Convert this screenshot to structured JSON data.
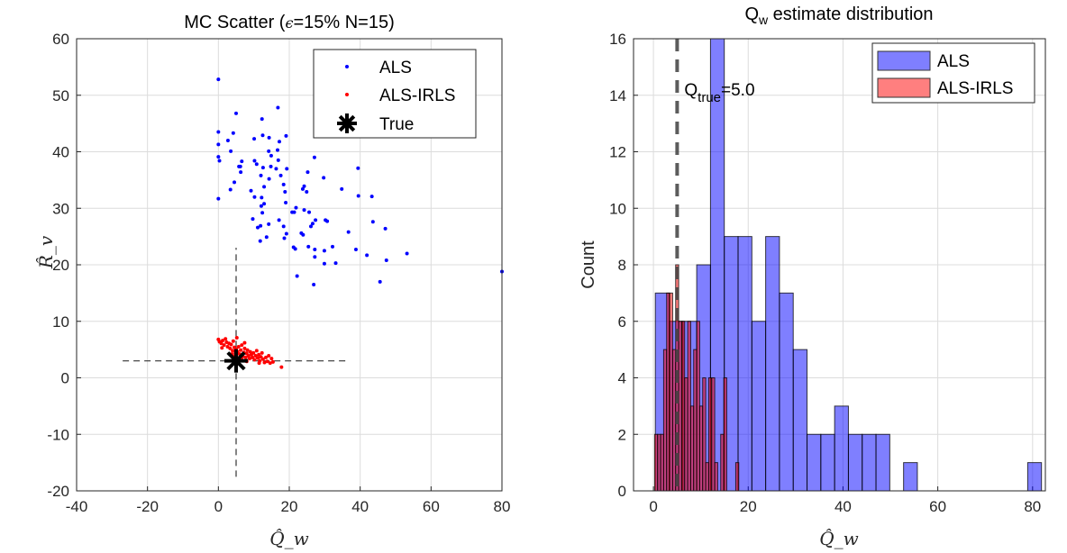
{
  "chart_data": [
    {
      "type": "scatter",
      "title": "MC Scatter  (ϵ=15%  N=15)",
      "xlabel": "Q̂_w",
      "ylabel": "R̂_v",
      "xlim": [
        -40,
        80
      ],
      "ylim": [
        -20,
        60
      ],
      "xticks": [
        -40,
        -20,
        0,
        20,
        40,
        60,
        80
      ],
      "yticks": [
        -20,
        -10,
        0,
        10,
        20,
        30,
        40,
        50,
        60
      ],
      "grid": true,
      "legend_position": "top-right",
      "series": [
        {
          "name": "ALS",
          "color": "#0000ff",
          "marker": "dot",
          "points": [
            [
              0,
              52.8
            ],
            [
              5,
              46.8
            ],
            [
              16.8,
              47.8
            ],
            [
              12.3,
              45.8
            ],
            [
              0,
              43.5
            ],
            [
              4.2,
              43.3
            ],
            [
              2.7,
              42
            ],
            [
              0,
              41.3
            ],
            [
              3.5,
              40.1
            ],
            [
              10.1,
              42.3
            ],
            [
              12.5,
              42.9
            ],
            [
              14.3,
              42.5
            ],
            [
              17.2,
              41.8
            ],
            [
              19.1,
              42.8
            ],
            [
              14.2,
              40.1
            ],
            [
              16.7,
              40.3
            ],
            [
              14.9,
              39.3
            ],
            [
              0,
              39.1
            ],
            [
              0.3,
              38.4
            ],
            [
              6.6,
              38.3
            ],
            [
              10.2,
              38.4
            ],
            [
              10.8,
              37.8
            ],
            [
              5.8,
              37.4
            ],
            [
              6.2,
              37.4
            ],
            [
              6.3,
              36.4
            ],
            [
              12.6,
              37.2
            ],
            [
              14.8,
              37.4
            ],
            [
              16.3,
              37
            ],
            [
              16.9,
              38.5
            ],
            [
              19.3,
              37
            ],
            [
              27.1,
              39
            ],
            [
              12,
              35.8
            ],
            [
              14.3,
              35.2
            ],
            [
              17.6,
              35.8
            ],
            [
              25.2,
              36.4
            ],
            [
              29.7,
              35.4
            ],
            [
              39.4,
              37.1
            ],
            [
              4.5,
              34.6
            ],
            [
              12.9,
              33.8
            ],
            [
              18.4,
              34.2
            ],
            [
              24.2,
              33.9
            ],
            [
              23.8,
              33.4
            ],
            [
              24.9,
              32.9
            ],
            [
              34.8,
              33.4
            ],
            [
              3.4,
              33.3
            ],
            [
              9.2,
              33.1
            ],
            [
              18.8,
              32.9
            ],
            [
              0,
              31.7
            ],
            [
              10.2,
              32
            ],
            [
              12.2,
              31.9
            ],
            [
              12.9,
              30.8
            ],
            [
              12.1,
              30.4
            ],
            [
              19,
              31
            ],
            [
              39.5,
              32.2
            ],
            [
              43.3,
              32.1
            ],
            [
              21.9,
              30.1
            ],
            [
              20.8,
              29.3
            ],
            [
              21.4,
              29.3
            ],
            [
              24.2,
              29.7
            ],
            [
              25.6,
              29.3
            ],
            [
              12.4,
              29.2
            ],
            [
              9.7,
              28.1
            ],
            [
              17.1,
              27.9
            ],
            [
              27.4,
              27.9
            ],
            [
              30.2,
              27.9
            ],
            [
              30.7,
              27.7
            ],
            [
              26.6,
              27.3
            ],
            [
              26.1,
              26.8
            ],
            [
              43.6,
              27.6
            ],
            [
              14.2,
              27.2
            ],
            [
              11.9,
              26.9
            ],
            [
              11.1,
              26.6
            ],
            [
              18.4,
              26.8
            ],
            [
              47.1,
              26.4
            ],
            [
              36.7,
              25.8
            ],
            [
              23.4,
              25.6
            ],
            [
              23.9,
              25.3
            ],
            [
              19.2,
              25.5
            ],
            [
              13.6,
              24.9
            ],
            [
              18.6,
              24.7
            ],
            [
              11.8,
              24.2
            ],
            [
              21.2,
              23.1
            ],
            [
              21.7,
              22.8
            ],
            [
              25.4,
              23.2
            ],
            [
              27.2,
              22.7
            ],
            [
              29.9,
              22.5
            ],
            [
              32.2,
              23.2
            ],
            [
              38.8,
              22.7
            ],
            [
              53.2,
              22
            ],
            [
              27.2,
              21.4
            ],
            [
              41.9,
              21.7
            ],
            [
              29.9,
              20.2
            ],
            [
              33.1,
              20.3
            ],
            [
              47.4,
              20.8
            ],
            [
              22.2,
              18
            ],
            [
              26.9,
              16.5
            ],
            [
              45.6,
              17
            ],
            [
              80,
              18.8
            ]
          ]
        },
        {
          "name": "ALS-IRLS",
          "color": "#ff0000",
          "marker": "dot",
          "points": [
            [
              0,
              6.8
            ],
            [
              0.3,
              6.4
            ],
            [
              0.8,
              6.1
            ],
            [
              1.2,
              6.6
            ],
            [
              1.6,
              5.8
            ],
            [
              2,
              6.9
            ],
            [
              2.3,
              6.3
            ],
            [
              2.6,
              5.5
            ],
            [
              3,
              6.1
            ],
            [
              3.3,
              5.2
            ],
            [
              3.6,
              5.9
            ],
            [
              4,
              4.8
            ],
            [
              4.2,
              6.5
            ],
            [
              4.5,
              5.4
            ],
            [
              4.8,
              4.4
            ],
            [
              5,
              5.1
            ],
            [
              5.2,
              7.1
            ],
            [
              5.4,
              4.6
            ],
            [
              5.7,
              5.5
            ],
            [
              6,
              4.2
            ],
            [
              6.3,
              4.9
            ],
            [
              6.6,
              5.8
            ],
            [
              6.9,
              3.8
            ],
            [
              7.2,
              4.5
            ],
            [
              7.4,
              5.2
            ],
            [
              7.7,
              3.6
            ],
            [
              8,
              4.3
            ],
            [
              8.2,
              4.9
            ],
            [
              8.5,
              3.9
            ],
            [
              8.8,
              3.4
            ],
            [
              9,
              4.6
            ],
            [
              9.3,
              4.1
            ],
            [
              9.6,
              3.6
            ],
            [
              9.9,
              4.4
            ],
            [
              10.2,
              3.2
            ],
            [
              10.5,
              3.9
            ],
            [
              10.8,
              4.8
            ],
            [
              11.1,
              3.5
            ],
            [
              11.4,
              4.1
            ],
            [
              11.7,
              3
            ],
            [
              12,
              3.7
            ],
            [
              12.3,
              4.4
            ],
            [
              12.6,
              3.3
            ],
            [
              13,
              2.7
            ],
            [
              13.4,
              3.6
            ],
            [
              13.8,
              2.9
            ],
            [
              14.2,
              3.9
            ],
            [
              14.6,
              2.6
            ],
            [
              15,
              3.4
            ],
            [
              15.4,
              2.8
            ],
            [
              8,
              2.9
            ],
            [
              6.5,
              3.4
            ],
            [
              3.8,
              4.2
            ],
            [
              1,
              5.3
            ],
            [
              17.8,
              1.9
            ],
            [
              11.5,
              2.6
            ],
            [
              7.4,
              6.2
            ],
            [
              4.4,
              3.8
            ]
          ]
        },
        {
          "name": "True",
          "color": "#000000",
          "marker": "asterisk",
          "points": [
            [
              5,
              3
            ]
          ]
        }
      ],
      "reference_lines": [
        {
          "orientation": "vertical",
          "x": 5,
          "y_range": [
            -17.5,
            23
          ],
          "style": "dashed"
        },
        {
          "orientation": "horizontal",
          "y": 3,
          "x_range": [
            -27,
            37
          ],
          "style": "dashed"
        }
      ]
    },
    {
      "type": "bar",
      "subtype": "histogram",
      "title": "Q_w estimate distribution",
      "xlabel": "Q̂_w",
      "ylabel": "Count",
      "xlim": [
        -4.2,
        82.7
      ],
      "ylim": [
        0,
        16
      ],
      "xticks": [
        0,
        20,
        40,
        60,
        80
      ],
      "yticks": [
        0,
        2,
        4,
        6,
        8,
        10,
        12,
        14,
        16
      ],
      "grid": true,
      "legend_position": "top-right",
      "series": [
        {
          "name": "ALS",
          "color": "#0000ff",
          "bin_start": 0.4,
          "bin_width": 2.91,
          "counts": [
            7,
            6,
            6,
            8,
            16,
            9,
            9,
            6,
            9,
            7,
            5,
            2,
            2,
            3,
            2,
            2,
            2,
            0,
            1,
            0,
            0,
            0,
            0,
            0,
            0,
            0,
            0,
            1
          ]
        },
        {
          "name": "ALS-IRLS",
          "color": "#ff0000",
          "bin_start": 0.25,
          "bin_width": 0.634,
          "counts": [
            2,
            2,
            2,
            5,
            7,
            7,
            5,
            8,
            6,
            6,
            4,
            6,
            3,
            5,
            6,
            3,
            4,
            1,
            4,
            4,
            1,
            0,
            2,
            4,
            0,
            0,
            0,
            1
          ]
        }
      ],
      "reference_line": {
        "x": 5,
        "style": "dashed",
        "color": "#404040"
      },
      "annotation": {
        "main": "Q",
        "sub": "true",
        "rest": "=5.0",
        "x": 5.0
      }
    }
  ]
}
